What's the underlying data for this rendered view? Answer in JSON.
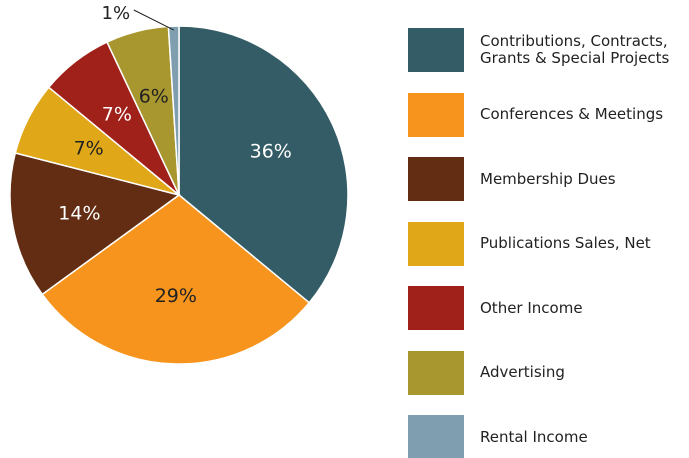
{
  "chart_data": {
    "type": "pie",
    "categories": [
      "Contributions, Contracts,\nGrants & Special Projects",
      "Conferences & Meetings",
      "Membership Dues",
      "Publications Sales, Net",
      "Other Income",
      "Advertising",
      "Rental Income"
    ],
    "values": [
      36,
      29,
      14,
      7,
      7,
      6,
      1
    ],
    "value_labels": [
      "36%",
      "29%",
      "14%",
      "7%",
      "7%",
      "6%",
      "1%"
    ],
    "colors": [
      "#335c66",
      "#f7941d",
      "#622d12",
      "#e0a818",
      "#a0201a",
      "#a8962e",
      "#7f9fb0"
    ],
    "legend": "right"
  }
}
